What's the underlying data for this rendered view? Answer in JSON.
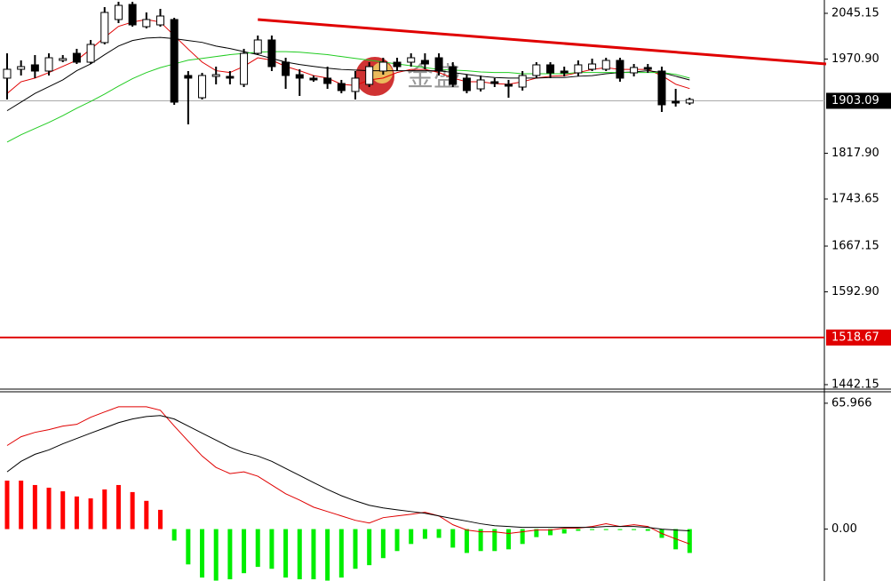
{
  "chart_data": [
    {
      "type": "candlestick",
      "watermark": "金盛",
      "ylim": [
        1434.9,
        2066.8
      ],
      "yticks": [
        2045.15,
        {
          "value": 1970.9,
          "label": "1970.90"
        },
        {
          "value": 1817.9,
          "label": "1817.90"
        },
        1743.65,
        1667.15,
        {
          "value": 1592.9,
          "label": "1592.90"
        },
        1442.15
      ],
      "up_color": "#ffffff",
      "down_color": "#000000",
      "open": [
        1939.9,
        1954.3,
        1961.5,
        1951.4,
        1968.7,
        1980.2,
        1965.8,
        1997.6,
        2035.1,
        2059.6,
        2023.5,
        2026.4,
        2035.1,
        1944.2,
        1908.1,
        1942.7,
        1942.7,
        1929.8,
        1980.2,
        2001.9,
        1965.8,
        1945.6,
        1939.9,
        1939.9,
        1931.2,
        1918.2,
        1929.8,
        1951.4,
        1965.8,
        1965.8,
        1968.7,
        1973.0,
        1958.6,
        1939.9,
        1922.5,
        1934.1,
        1929.8,
        1925.4,
        1944.2,
        1961.5,
        1951.4,
        1948.5,
        1954.3,
        1954.3,
        1968.7,
        1948.5,
        1957.2,
        1951.4,
        1902.3,
        1899.5
      ],
      "high": [
        1980.2,
        1968.7,
        1977.4,
        1980.2,
        1977.4,
        1987.5,
        2001.9,
        2055.3,
        2063.9,
        2063.9,
        2046.6,
        2052.4,
        2037.9,
        1951.4,
        1948.5,
        1958.6,
        1951.4,
        1987.5,
        2009.1,
        2009.1,
        1973.0,
        1954.3,
        1944.2,
        1958.6,
        1937.0,
        1951.4,
        1965.8,
        1973.0,
        1973.0,
        1980.2,
        1980.2,
        1980.2,
        1965.8,
        1945.6,
        1944.2,
        1939.9,
        1937.0,
        1951.4,
        1965.8,
        1965.8,
        1958.6,
        1968.7,
        1971.6,
        1973.0,
        1973.0,
        1962.9,
        1962.9,
        1958.6,
        1922.5,
        1908.1
      ],
      "low": [
        1905.2,
        1944.2,
        1939.9,
        1944.2,
        1965.8,
        1962.9,
        1962.9,
        1994.7,
        2029.3,
        2023.5,
        2020.6,
        2023.5,
        1896.6,
        1864.8,
        1905.2,
        1929.8,
        1929.8,
        1925.4,
        1977.4,
        1951.4,
        1922.5,
        1911.0,
        1934.1,
        1922.5,
        1915.3,
        1905.2,
        1925.4,
        1945.6,
        1951.4,
        1958.6,
        1954.3,
        1944.2,
        1925.4,
        1915.3,
        1918.2,
        1925.4,
        1908.1,
        1919.7,
        1939.9,
        1939.9,
        1942.7,
        1942.7,
        1951.4,
        1951.4,
        1934.1,
        1942.7,
        1948.5,
        1885.0,
        1893.7,
        1896.6
      ],
      "close": [
        1954.3,
        1958.6,
        1951.4,
        1973.0,
        1971.6,
        1965.8,
        1994.7,
        2046.6,
        2058.1,
        2026.4,
        2035.1,
        2040.8,
        1900.9,
        1939.9,
        1944.2,
        1945.6,
        1939.9,
        1980.2,
        2001.9,
        1958.6,
        1944.2,
        1939.9,
        1937.0,
        1931.2,
        1919.7,
        1939.9,
        1958.6,
        1965.8,
        1958.6,
        1973.0,
        1962.9,
        1951.4,
        1929.8,
        1919.7,
        1937.0,
        1931.2,
        1926.9,
        1944.2,
        1961.5,
        1948.5,
        1948.5,
        1961.5,
        1962.9,
        1968.7,
        1939.9,
        1957.2,
        1954.3,
        1896.6,
        1899.5,
        1905.2
      ],
      "series": [
        {
          "color": "#e00000",
          "values": [
            1915,
            1934,
            1940,
            1949,
            1959,
            1969,
            1987,
            2006,
            2024,
            2031,
            2035,
            2031,
            2009,
            1987,
            1966,
            1952,
            1949,
            1959,
            1973,
            1969,
            1959,
            1952,
            1944,
            1940,
            1930,
            1928,
            1937,
            1940,
            1949,
            1954,
            1954,
            1949,
            1940,
            1934,
            1934,
            1931,
            1930,
            1934,
            1940,
            1943,
            1944,
            1949,
            1954,
            1957,
            1954,
            1954,
            1954,
            1944,
            1930,
            1923
          ]
        },
        {
          "color": "#000000",
          "values": [
            1887,
            1901,
            1915,
            1926,
            1937,
            1952,
            1963,
            1978,
            1992,
            2001,
            2005,
            2006,
            2004,
            2001,
            1998,
            1992,
            1988,
            1983,
            1978,
            1972,
            1966,
            1962,
            1959,
            1956,
            1954,
            1953,
            1952,
            1952,
            1952,
            1952,
            1952,
            1952,
            1949,
            1946,
            1943,
            1941,
            1940,
            1940,
            1940,
            1941,
            1941,
            1943,
            1944,
            1947,
            1949,
            1950,
            1952,
            1949,
            1943,
            1937
          ]
        },
        {
          "color": "#22cc22",
          "values": [
            1836,
            1848,
            1858,
            1868,
            1879,
            1891,
            1902,
            1914,
            1927,
            1939,
            1949,
            1957,
            1963,
            1969,
            1972,
            1975,
            1978,
            1980,
            1982,
            1983,
            1983,
            1982,
            1980,
            1978,
            1975,
            1972,
            1969,
            1966,
            1963,
            1960,
            1957,
            1954,
            1953,
            1952,
            1950,
            1949,
            1949,
            1947,
            1947,
            1947,
            1947,
            1949,
            1949,
            1949,
            1949,
            1949,
            1949,
            1949,
            1946,
            1940
          ]
        }
      ],
      "trendline": {
        "x": [
          18,
          58.8
        ],
        "values": [
          2035,
          1963
        ],
        "color": "#e00000"
      },
      "hline": {
        "value": 1518.67,
        "color": "#e00000"
      },
      "last_price": 1903.09
    },
    {
      "type": "macd",
      "ylim": [
        -27.2,
        71.5
      ],
      "yticks": [
        65.966,
        {
          "value": 0,
          "label": "0.00"
        }
      ],
      "histogram": {
        "up_color": "#ff0000",
        "down_color": "#00ee00",
        "values": [
          25.4,
          25.4,
          23.1,
          21.7,
          19.8,
          17.1,
          16.1,
          20.8,
          23.1,
          19.4,
          14.8,
          10.1,
          -6.0,
          -18.5,
          -25.4,
          -27,
          -26.3,
          -23.1,
          -19.8,
          -20.8,
          -25.4,
          -26.3,
          -26.3,
          -27,
          -25.4,
          -20.8,
          -18.9,
          -15.2,
          -11.5,
          -7.8,
          -5.1,
          -4.6,
          -9.7,
          -12.5,
          -11.5,
          -11.5,
          -10.6,
          -7.8,
          -4.2,
          -3.2,
          -2.3,
          -0.9,
          -0.5,
          -0.5,
          -0.5,
          -0.5,
          -0.9,
          -4.6,
          -10.6,
          -12.5
        ]
      },
      "series": [
        {
          "color": "#e00000",
          "values": [
            43.8,
            48.4,
            50.7,
            52.1,
            54.0,
            54.9,
            58.6,
            61.4,
            64.1,
            64.1,
            64.1,
            62.3,
            54.0,
            46.1,
            38.3,
            32.3,
            29.1,
            30.0,
            27.7,
            23.1,
            18.5,
            15.2,
            11.5,
            9.2,
            6.9,
            4.6,
            3.2,
            6.0,
            6.9,
            7.8,
            8.8,
            6.9,
            2.3,
            -0.5,
            -1.4,
            -1.4,
            -2.3,
            -1.4,
            -0.5,
            -0.5,
            0.5,
            0.5,
            1.4,
            2.8,
            1.4,
            2.3,
            1.4,
            -2.3,
            -5.1,
            -7.8
          ]
        },
        {
          "color": "#000000",
          "values": [
            30.0,
            35.5,
            39.2,
            41.5,
            44.7,
            47.5,
            50.3,
            53.0,
            55.8,
            57.7,
            59.0,
            59.5,
            57.7,
            54.0,
            50.3,
            46.6,
            42.9,
            40.1,
            38.3,
            35.5,
            31.8,
            28.1,
            24.4,
            20.8,
            17.5,
            14.8,
            12.5,
            11.1,
            10.1,
            9.2,
            8.3,
            6.9,
            5.5,
            4.2,
            2.8,
            1.8,
            1.4,
            0.9,
            0.9,
            0.9,
            0.9,
            0.9,
            0.9,
            1.4,
            1.4,
            1.4,
            0.9,
            0,
            -0.5,
            -0.9
          ]
        }
      ]
    }
  ]
}
